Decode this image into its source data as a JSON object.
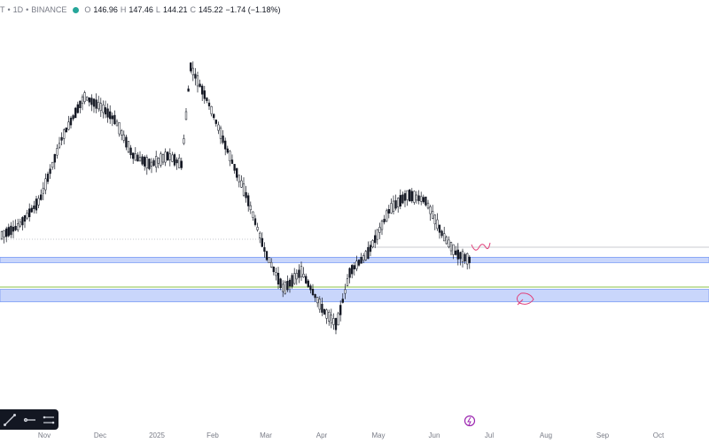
{
  "header": {
    "symbol_partial": "T",
    "interval": "1D",
    "exchange": "BINANCE",
    "sep": "•",
    "o_label": "O",
    "o_value": "146.96",
    "h_label": "H",
    "h_value": "147.46",
    "l_label": "L",
    "l_value": "144.21",
    "c_label": "C",
    "c_value": "145.22",
    "change": "−1.74 (−1.18%)"
  },
  "colors": {
    "candle": "#131722",
    "zone_fill": "#c9d6fb",
    "zone_border": "#7b9cf5",
    "support_line": "#8bc34a",
    "projection": "#e0407a",
    "event_icon": "#9c27b0"
  },
  "icons": {
    "toolbar": [
      "trend-line-icon",
      "horizontal-ray-icon",
      "measure-icon"
    ],
    "event": "event-marker-icon"
  },
  "chart_data": {
    "type": "candlestick",
    "x_axis_labels": [
      "Nov",
      "Dec",
      "2025",
      "Feb",
      "Mar",
      "Apr",
      "May",
      "Jun",
      "Jul",
      "Aug",
      "Sep",
      "Oct"
    ],
    "price_range": [
      95,
      265
    ],
    "grid": false,
    "candles_trend": [
      {
        "month": "Nov",
        "price": 160
      },
      {
        "month": "Dec",
        "price": 240
      },
      {
        "month": "Jan",
        "price": 195
      },
      {
        "month": "Jan",
        "price": 260
      },
      {
        "month": "Feb",
        "price": 170
      },
      {
        "month": "Mar",
        "price": 130
      },
      {
        "month": "Apr",
        "price": 105
      },
      {
        "month": "May",
        "price": 175
      },
      {
        "month": "Jun",
        "price": 145
      }
    ],
    "zones": [
      {
        "name": "upper-demand-zone",
        "low": 145,
        "high": 148
      },
      {
        "name": "lower-demand-zone",
        "low": 123,
        "high": 130
      }
    ]
  }
}
